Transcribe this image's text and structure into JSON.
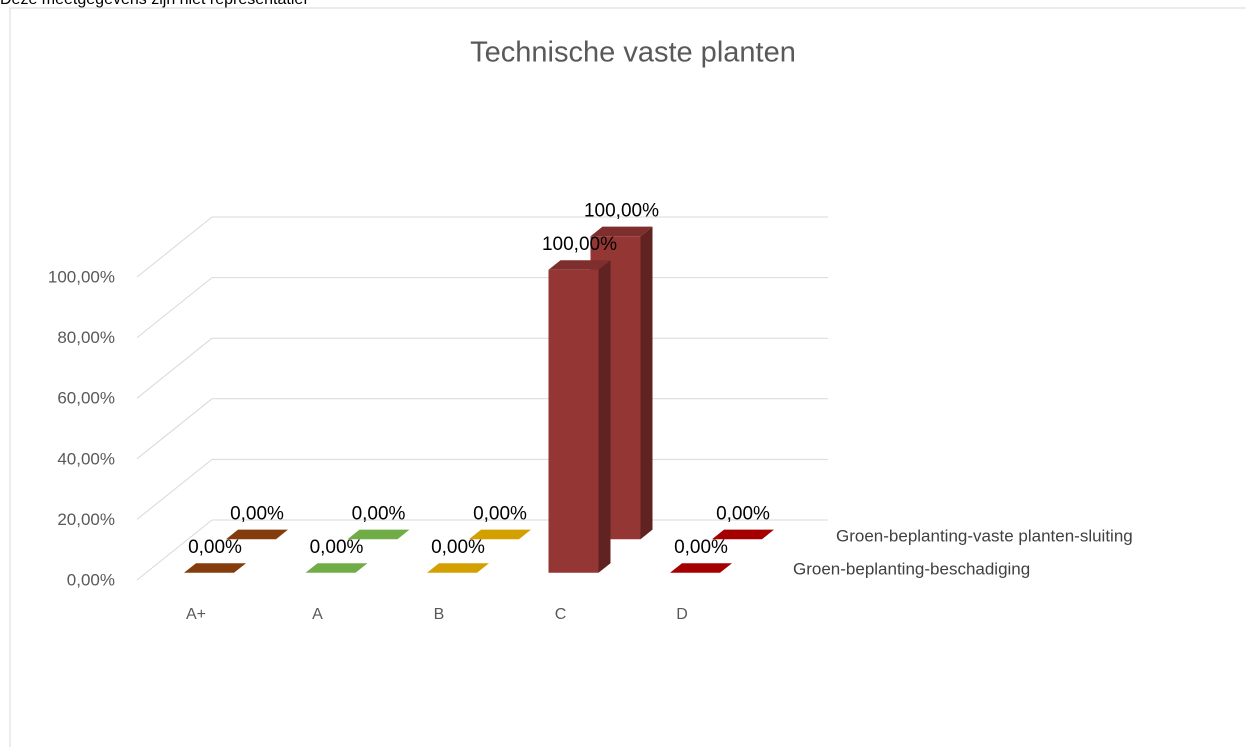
{
  "note": "Deze meetgegevens zijn niet representatief",
  "chart_data": {
    "type": "bar3d",
    "title": "Technische vaste planten",
    "categories": [
      "A+",
      "A",
      "B",
      "C",
      "D"
    ],
    "colors": [
      "#843c0c",
      "#70ad47",
      "#d4a000",
      "#943634",
      "#a50000"
    ],
    "series": [
      {
        "name": "Groen-beplanting-beschadiging",
        "values": [
          0,
          0,
          0,
          100,
          0
        ],
        "value_labels": [
          "0,00%",
          "0,00%",
          "0,00%",
          "100,00%",
          "0,00%"
        ]
      },
      {
        "name": "Groen-beplanting-vaste planten-sluiting",
        "values": [
          0,
          0,
          0,
          100,
          0
        ],
        "value_labels": [
          "0,00%",
          "0,00%",
          "0,00%",
          "100,00%",
          "0,00%"
        ]
      }
    ],
    "ylim": [
      0,
      100
    ],
    "yticks": [
      {
        "value": 0,
        "label": "0,00%"
      },
      {
        "value": 20,
        "label": "20,00%"
      },
      {
        "value": 40,
        "label": "40,00%"
      },
      {
        "value": 60,
        "label": "60,00%"
      },
      {
        "value": 80,
        "label": "80,00%"
      },
      {
        "value": 100,
        "label": "100,00%"
      }
    ],
    "grid": true
  }
}
